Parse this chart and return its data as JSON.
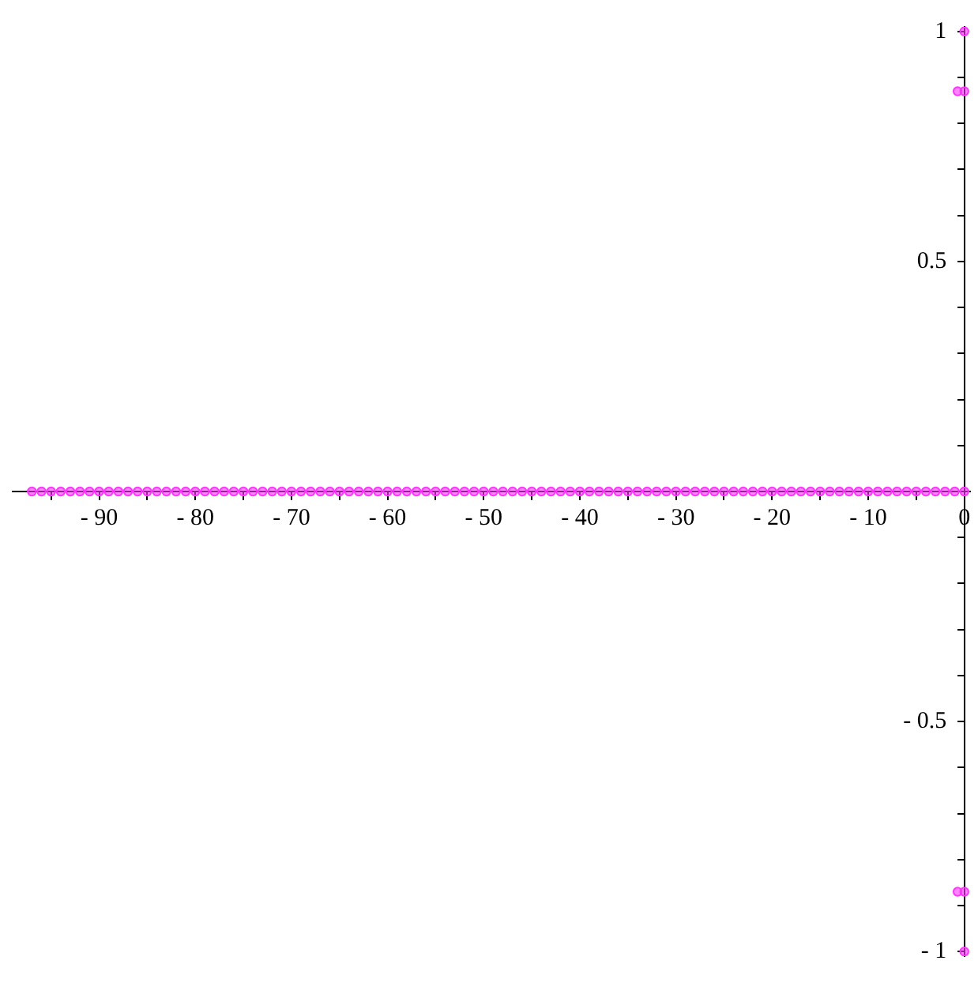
{
  "chart_data": {
    "type": "scatter",
    "series": [
      {
        "color": "#ff33ff",
        "x": [
          -97,
          -96,
          -95,
          -94,
          -93,
          -92,
          -91,
          -90,
          -89,
          -88,
          -87,
          -86,
          -85,
          -84,
          -83,
          -82,
          -81,
          -80,
          -79,
          -78,
          -77,
          -76,
          -75,
          -74,
          -73,
          -72,
          -71,
          -70,
          -69,
          -68,
          -67,
          -66,
          -65,
          -64,
          -63,
          -62,
          -61,
          -60,
          -59,
          -58,
          -57,
          -56,
          -55,
          -54,
          -53,
          -52,
          -51,
          -50,
          -49,
          -48,
          -47,
          -46,
          -45,
          -44,
          -43,
          -42,
          -41,
          -40,
          -39,
          -38,
          -37,
          -36,
          -35,
          -34,
          -33,
          -32,
          -31,
          -30,
          -29,
          -28,
          -27,
          -26,
          -25,
          -24,
          -23,
          -22,
          -21,
          -20,
          -19,
          -18,
          -17,
          -16,
          -15,
          -14,
          -13,
          -12,
          -11,
          -10,
          -9,
          -8,
          -7,
          -6,
          -5,
          -4,
          -3,
          -2,
          -1,
          0,
          0,
          -0.7,
          0,
          -0.7,
          0,
          0
        ],
        "values": [
          0,
          0,
          0,
          0,
          0,
          0,
          0,
          0,
          0,
          0,
          0,
          0,
          0,
          0,
          0,
          0,
          0,
          0,
          0,
          0,
          0,
          0,
          0,
          0,
          0,
          0,
          0,
          0,
          0,
          0,
          0,
          0,
          0,
          0,
          0,
          0,
          0,
          0,
          0,
          0,
          0,
          0,
          0,
          0,
          0,
          0,
          0,
          0,
          0,
          0,
          0,
          0,
          0,
          0,
          0,
          0,
          0,
          0,
          0,
          0,
          0,
          0,
          0,
          0,
          0,
          0,
          0,
          0,
          0,
          0,
          0,
          0,
          0,
          0,
          0,
          0,
          0,
          0,
          0,
          0,
          0,
          0,
          0,
          0,
          0,
          0,
          0,
          0,
          0,
          0,
          0,
          0,
          0,
          0,
          0,
          0,
          0,
          0,
          1,
          0.87,
          0.87,
          -0.87,
          -0.87,
          -1
        ]
      }
    ],
    "xlim": [
      -99,
      0.6
    ],
    "ylim": [
      -1.01,
      1.01
    ],
    "xticks": [
      {
        "value": -95,
        "label": null
      },
      -90,
      {
        "value": -85,
        "label": null
      },
      -80,
      {
        "value": -75,
        "label": null
      },
      -70,
      {
        "value": -65,
        "label": null
      },
      -60,
      {
        "value": -55,
        "label": null
      },
      -50,
      {
        "value": -45,
        "label": null
      },
      -40,
      {
        "value": -35,
        "label": null
      },
      -30,
      {
        "value": -25,
        "label": null
      },
      -20,
      {
        "value": -15,
        "label": null
      },
      -10,
      {
        "value": -5,
        "label": null
      },
      0
    ],
    "yticks": [
      -1,
      {
        "value": -0.9,
        "label": null
      },
      {
        "value": -0.8,
        "label": null
      },
      {
        "value": -0.7,
        "label": null
      },
      {
        "value": -0.6,
        "label": null
      },
      -0.5,
      {
        "value": -0.4,
        "label": null
      },
      {
        "value": -0.3,
        "label": null
      },
      {
        "value": -0.2,
        "label": null
      },
      {
        "value": -0.1,
        "label": null
      },
      {
        "value": 0.1,
        "label": null
      },
      {
        "value": 0.2,
        "label": null
      },
      {
        "value": 0.3,
        "label": null
      },
      {
        "value": 0.4,
        "label": null
      },
      0.5,
      {
        "value": 0.6,
        "label": null
      },
      {
        "value": 0.7,
        "label": null
      },
      {
        "value": 0.8,
        "label": null
      },
      {
        "value": 0.9,
        "label": null
      },
      1
    ],
    "marker": "circle",
    "grid": false,
    "legend": false
  }
}
